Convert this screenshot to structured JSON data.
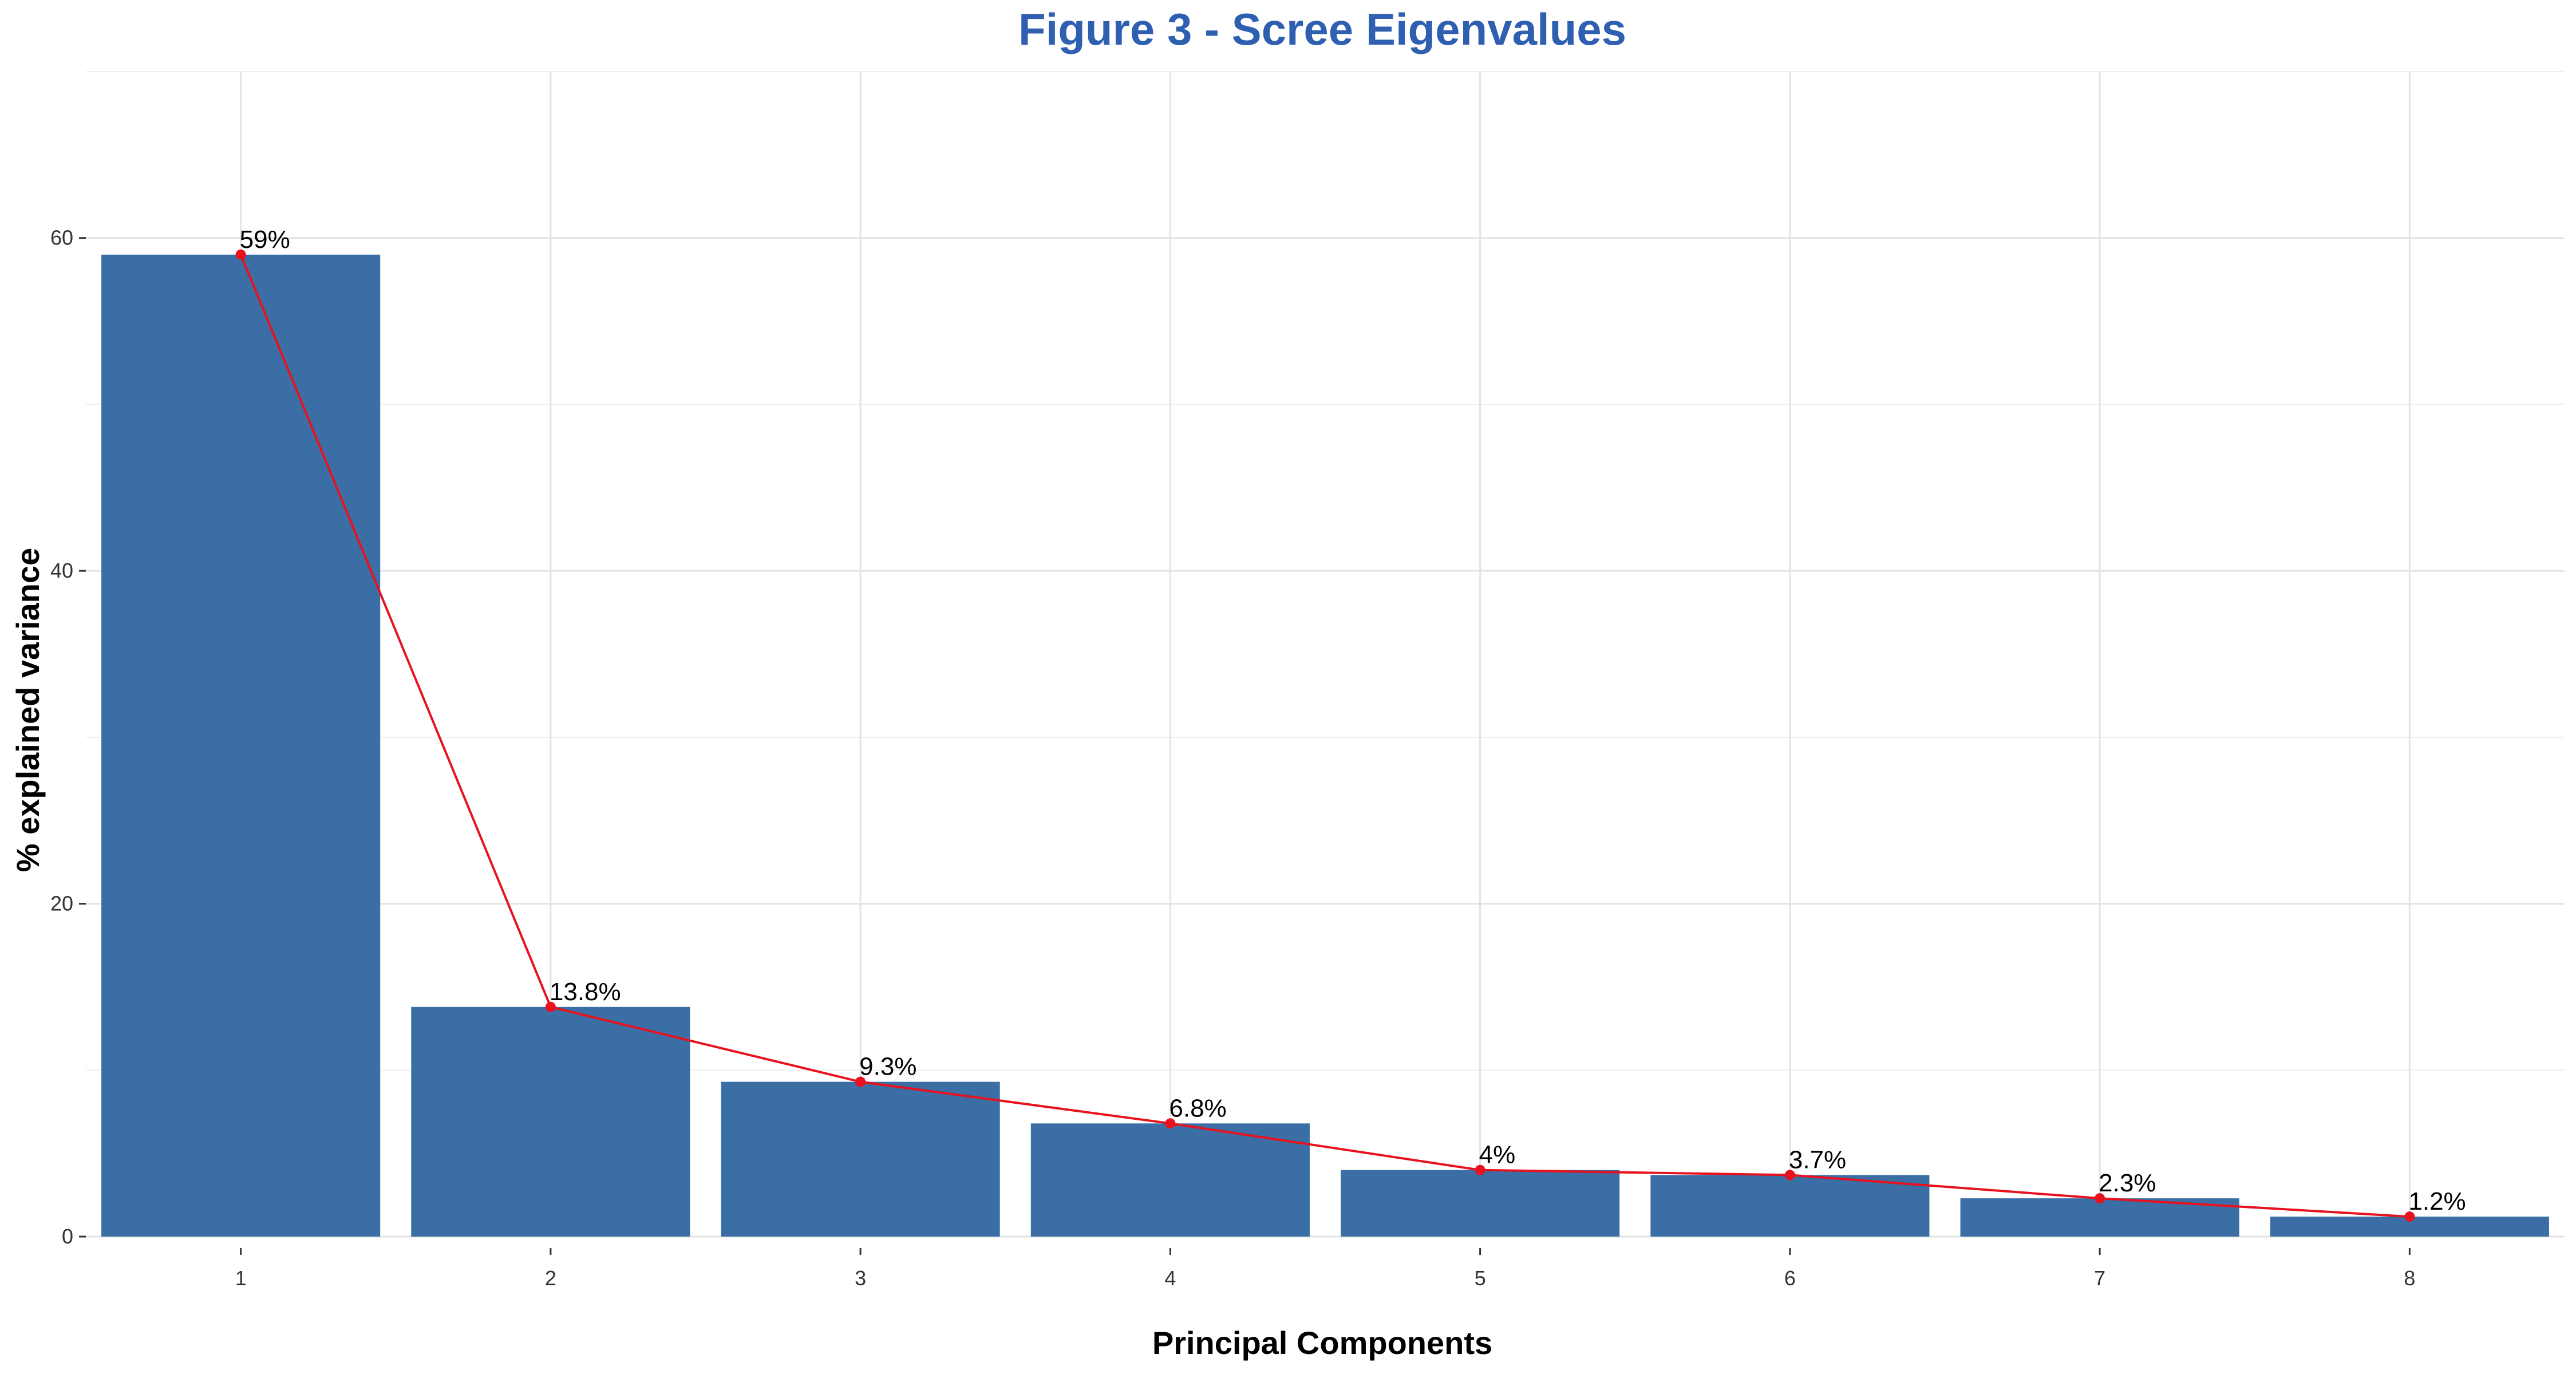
{
  "chart_data": {
    "type": "bar",
    "title": "Figure 3 - Scree Eigenvalues",
    "xlabel": "Principal Components",
    "ylabel": "% explained variance",
    "categories": [
      "1",
      "2",
      "3",
      "4",
      "5",
      "6",
      "7",
      "8"
    ],
    "values": [
      59.0,
      13.8,
      9.3,
      6.8,
      4.0,
      3.7,
      2.3,
      1.2
    ],
    "labels": [
      "59%",
      "13.8%",
      "9.3%",
      "6.8%",
      "4%",
      "3.7%",
      "2.3%",
      "1.2%"
    ],
    "ylim": [
      0,
      70
    ],
    "yticks": [
      0,
      20,
      40,
      60
    ],
    "grid": true,
    "colors": {
      "bar": "#3a6ea5",
      "line": "#e8121e",
      "title": "#2e5fb0"
    }
  }
}
